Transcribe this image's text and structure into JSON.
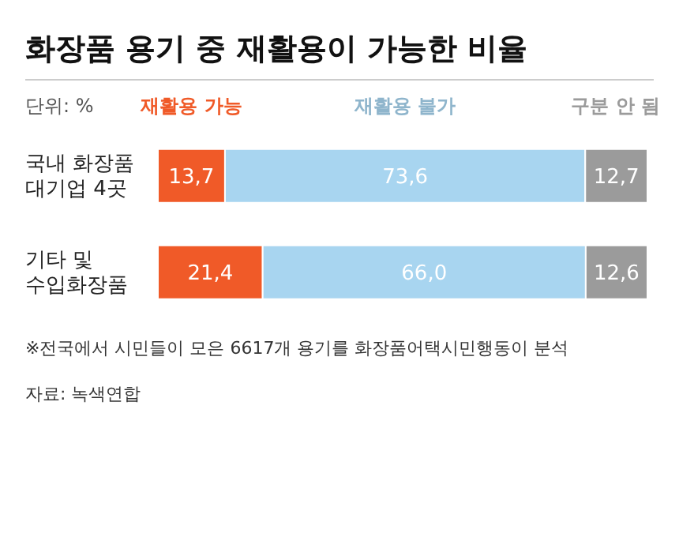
{
  "chart_data": {
    "type": "bar",
    "orientation": "horizontal",
    "stacked": true,
    "title": "화장품 용기 중 재활용이 가능한 비율",
    "categories": [
      "국내 화장품\n대기업 4곳",
      "기타 및\n수입화장품"
    ],
    "series": [
      {
        "name": "재활용 가능",
        "color": "#f05a28",
        "values": [
          13.7,
          21.4
        ],
        "value_labels": [
          "13,7",
          "21,4"
        ]
      },
      {
        "name": "재활용 불가",
        "color": "#a8d5f0",
        "values": [
          73.6,
          66.0
        ],
        "value_labels": [
          "73,6",
          "66,0"
        ]
      },
      {
        "name": "구분 안 됨",
        "color": "#9b9b9b",
        "values": [
          12.7,
          12.6
        ],
        "value_labels": [
          "12,7",
          "12,6"
        ]
      }
    ],
    "legend": "top",
    "grid": false,
    "annotations": [
      "단위: %",
      "※전국에서 시민들이 모은 6617개 용기를 화장품어택시민행동이 분석",
      "자료: 녹색연합"
    ]
  }
}
